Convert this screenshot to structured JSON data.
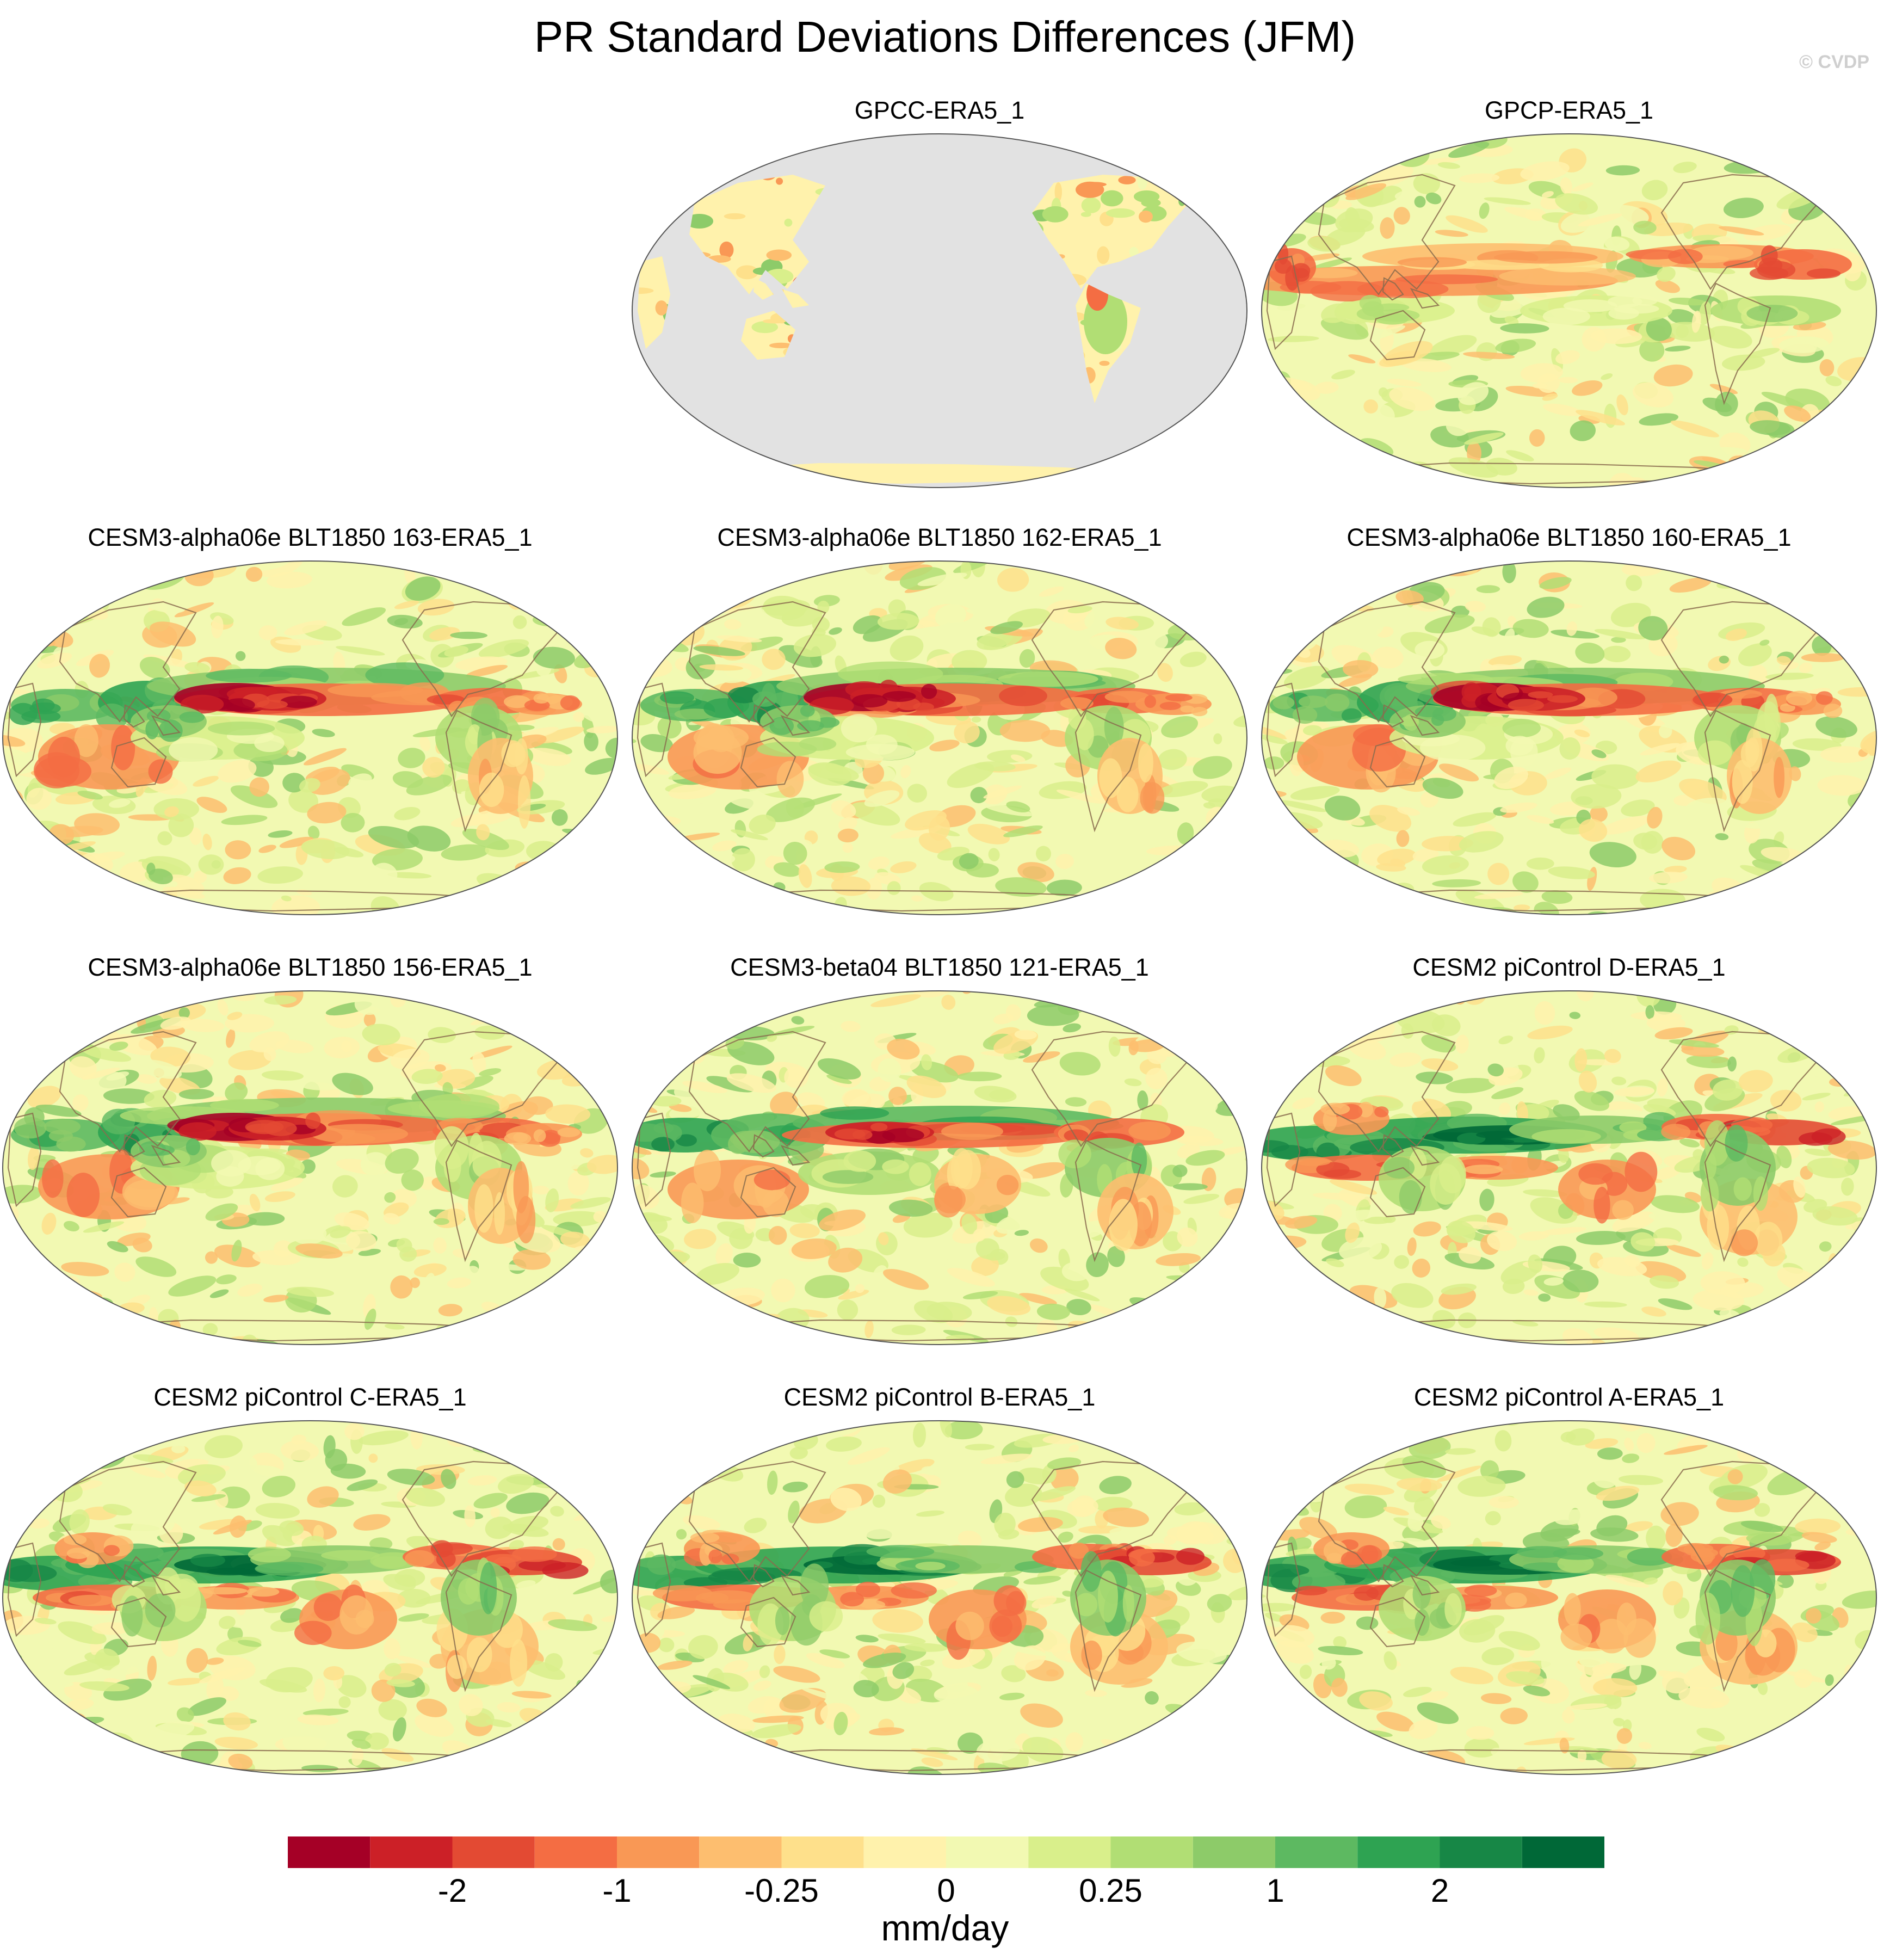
{
  "figure": {
    "title": "PR Standard Deviations Differences (JFM)",
    "watermark": "© CVDP",
    "land_mask_color": "#e2e2e2",
    "coastline_color": "#8a6c4e"
  },
  "panels": [
    {
      "title": "GPCC-ERA5_1",
      "style": "land"
    },
    {
      "title": "GPCP-ERA5_1",
      "style": "obs"
    },
    {
      "title": "CESM3-alpha06e BLT1850 163-ERA5_1",
      "style": "strongwarm"
    },
    {
      "title": "CESM3-alpha06e BLT1850 162-ERA5_1",
      "style": "strongwarm"
    },
    {
      "title": "CESM3-alpha06e BLT1850 160-ERA5_1",
      "style": "strongwarm"
    },
    {
      "title": "CESM3-alpha06e BLT1850 156-ERA5_1",
      "style": "strongwarm"
    },
    {
      "title": "CESM3-beta04 BLT1850 121-ERA5_1",
      "style": "midwarm"
    },
    {
      "title": "CESM2 piControl D-ERA5_1",
      "style": "cesm2"
    },
    {
      "title": "CESM2 piControl C-ERA5_1",
      "style": "cesm2"
    },
    {
      "title": "CESM2 piControl B-ERA5_1",
      "style": "cesm2"
    },
    {
      "title": "CESM2 piControl A-ERA5_1",
      "style": "cesm2"
    }
  ],
  "colorbar": {
    "unit": "mm/day",
    "colors": [
      "#a50026",
      "#cc2027",
      "#e34a33",
      "#f46d43",
      "#f99855",
      "#fdbe6f",
      "#fee08b",
      "#fff2ac",
      "#f2f9b2",
      "#d9ef8b",
      "#b1de74",
      "#8dcb69",
      "#5db961",
      "#2ea352",
      "#178746",
      "#006837"
    ],
    "tick_labels": [
      {
        "label": "-2",
        "boundary": 2
      },
      {
        "label": "-1",
        "boundary": 4
      },
      {
        "label": "-0.25",
        "boundary": 6
      },
      {
        "label": "0",
        "boundary": 8
      },
      {
        "label": "0.25",
        "boundary": 10
      },
      {
        "label": "1",
        "boundary": 12
      },
      {
        "label": "2",
        "boundary": 14
      }
    ]
  }
}
